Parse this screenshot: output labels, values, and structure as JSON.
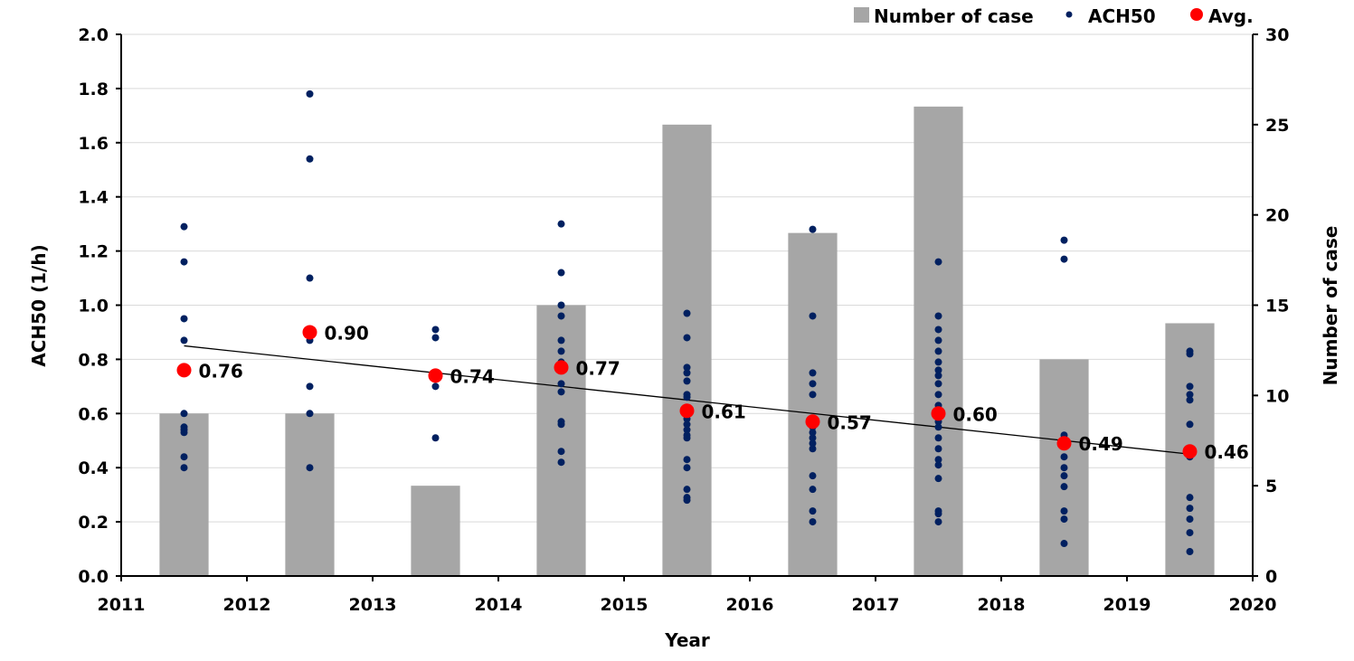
{
  "chart_data": {
    "type": "bar+scatter",
    "xlabel": "Year",
    "ylabel": "ACH50 (1/h)",
    "y2label": "Number of case",
    "x_ticks": [
      "2011",
      "2012",
      "2013",
      "2014",
      "2015",
      "2016",
      "2017",
      "2018",
      "2019",
      "2020"
    ],
    "xlim": [
      2011,
      2020
    ],
    "ylim": [
      0,
      2.0
    ],
    "y_ticks": [
      "0.0",
      "0.2",
      "0.4",
      "0.6",
      "0.8",
      "1.0",
      "1.2",
      "1.4",
      "1.6",
      "1.8",
      "2.0"
    ],
    "y2lim": [
      0,
      30
    ],
    "y2_ticks": [
      "0",
      "5",
      "10",
      "15",
      "20",
      "25",
      "30"
    ],
    "grid": "horizontal",
    "legend_position": "top-right",
    "colors": {
      "bar": "#a6a6a6",
      "ach50": "#002060",
      "avg": "#ff0000",
      "trend": "#000000",
      "grid": "#d9d9d9"
    },
    "legend": [
      {
        "label": "Number of case",
        "marker": "square"
      },
      {
        "label": "ACH50",
        "marker": "small-dot"
      },
      {
        "label": "Avg.",
        "marker": "large-dot"
      }
    ],
    "series": [
      {
        "name": "Number of case",
        "kind": "bar",
        "axis": "right",
        "x": [
          2011.5,
          2012.5,
          2013.5,
          2014.5,
          2015.5,
          2016.5,
          2017.5,
          2018.5,
          2019.5
        ],
        "values": [
          9,
          9,
          5,
          15,
          25,
          19,
          26,
          12,
          14
        ]
      },
      {
        "name": "ACH50",
        "kind": "scatter",
        "axis": "left",
        "points": [
          {
            "x": 2011.5,
            "y": [
              1.29,
              1.16,
              0.95,
              0.87,
              0.6,
              0.55,
              0.54,
              0.53,
              0.44,
              0.4
            ]
          },
          {
            "x": 2012.5,
            "y": [
              1.78,
              1.54,
              1.1,
              0.87,
              0.7,
              0.6,
              0.4
            ]
          },
          {
            "x": 2013.5,
            "y": [
              0.91,
              0.88,
              0.75,
              0.7,
              0.51
            ]
          },
          {
            "x": 2014.5,
            "y": [
              1.3,
              1.12,
              1.0,
              0.96,
              0.87,
              0.83,
              0.79,
              0.71,
              0.68,
              0.57,
              0.56,
              0.46,
              0.42
            ]
          },
          {
            "x": 2015.5,
            "y": [
              0.97,
              0.88,
              0.77,
              0.75,
              0.72,
              0.67,
              0.66,
              0.6,
              0.58,
              0.56,
              0.54,
              0.52,
              0.51,
              0.43,
              0.4,
              0.32,
              0.29,
              0.28
            ]
          },
          {
            "x": 2016.5,
            "y": [
              1.28,
              0.96,
              0.75,
              0.71,
              0.67,
              0.55,
              0.53,
              0.51,
              0.49,
              0.47,
              0.37,
              0.32,
              0.24,
              0.2
            ]
          },
          {
            "x": 2017.5,
            "y": [
              1.16,
              0.96,
              0.91,
              0.87,
              0.83,
              0.79,
              0.76,
              0.74,
              0.71,
              0.67,
              0.63,
              0.57,
              0.55,
              0.51,
              0.47,
              0.43,
              0.41,
              0.36,
              0.24,
              0.23,
              0.2
            ]
          },
          {
            "x": 2018.5,
            "y": [
              1.24,
              1.17,
              0.52,
              0.5,
              0.44,
              0.4,
              0.37,
              0.33,
              0.24,
              0.21,
              0.12
            ]
          },
          {
            "x": 2019.5,
            "y": [
              0.83,
              0.82,
              0.7,
              0.67,
              0.65,
              0.56,
              0.44,
              0.29,
              0.25,
              0.21,
              0.16,
              0.09
            ]
          }
        ]
      },
      {
        "name": "Avg.",
        "kind": "scatter",
        "axis": "left",
        "x": [
          2011.5,
          2012.5,
          2013.5,
          2014.5,
          2015.5,
          2016.5,
          2017.5,
          2018.5,
          2019.5
        ],
        "values": [
          0.76,
          0.9,
          0.74,
          0.77,
          0.61,
          0.57,
          0.6,
          0.49,
          0.46
        ],
        "labels": [
          "0.76",
          "0.90",
          "0.74",
          "0.77",
          "0.61",
          "0.57",
          "0.60",
          "0.49",
          "0.46"
        ]
      }
    ],
    "trendline": {
      "axis": "left",
      "x": [
        2011.5,
        2019.5
      ],
      "y": [
        0.85,
        0.45
      ]
    }
  }
}
